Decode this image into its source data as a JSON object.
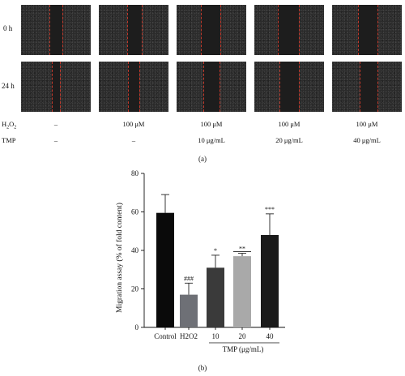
{
  "panel_a": {
    "row_labels": [
      "0 h",
      "24 h"
    ],
    "treatment_rows": [
      {
        "label": "H2O2",
        "values": [
          "–",
          "100 μM",
          "100 μM",
          "100 μM",
          "100 μM"
        ]
      },
      {
        "label": "TMP",
        "values": [
          "–",
          "–",
          "10 μg/mL",
          "20 μg/mL",
          "40 μg/mL"
        ]
      }
    ],
    "caption": "(a)"
  },
  "panel_b_caption": "(b)",
  "chart_data": {
    "type": "bar",
    "ylabel": "Migration assay (% of fold content)",
    "ylim": [
      0,
      80
    ],
    "yticks": [
      0,
      20,
      40,
      60,
      80
    ],
    "categories": [
      "Control",
      "H2O2",
      "10",
      "20",
      "40"
    ],
    "values": [
      59.5,
      17,
      31,
      37,
      48
    ],
    "errors": [
      9.5,
      6,
      6.5,
      1.5,
      11
    ],
    "colors": [
      "#0a0a0a",
      "#6e7076",
      "#3a3a3a",
      "#a9a9a9",
      "#1a1a1a"
    ],
    "annotations": [
      "",
      "###",
      "*",
      "**",
      "***"
    ],
    "group_label": "TMP (μg/mL)"
  }
}
